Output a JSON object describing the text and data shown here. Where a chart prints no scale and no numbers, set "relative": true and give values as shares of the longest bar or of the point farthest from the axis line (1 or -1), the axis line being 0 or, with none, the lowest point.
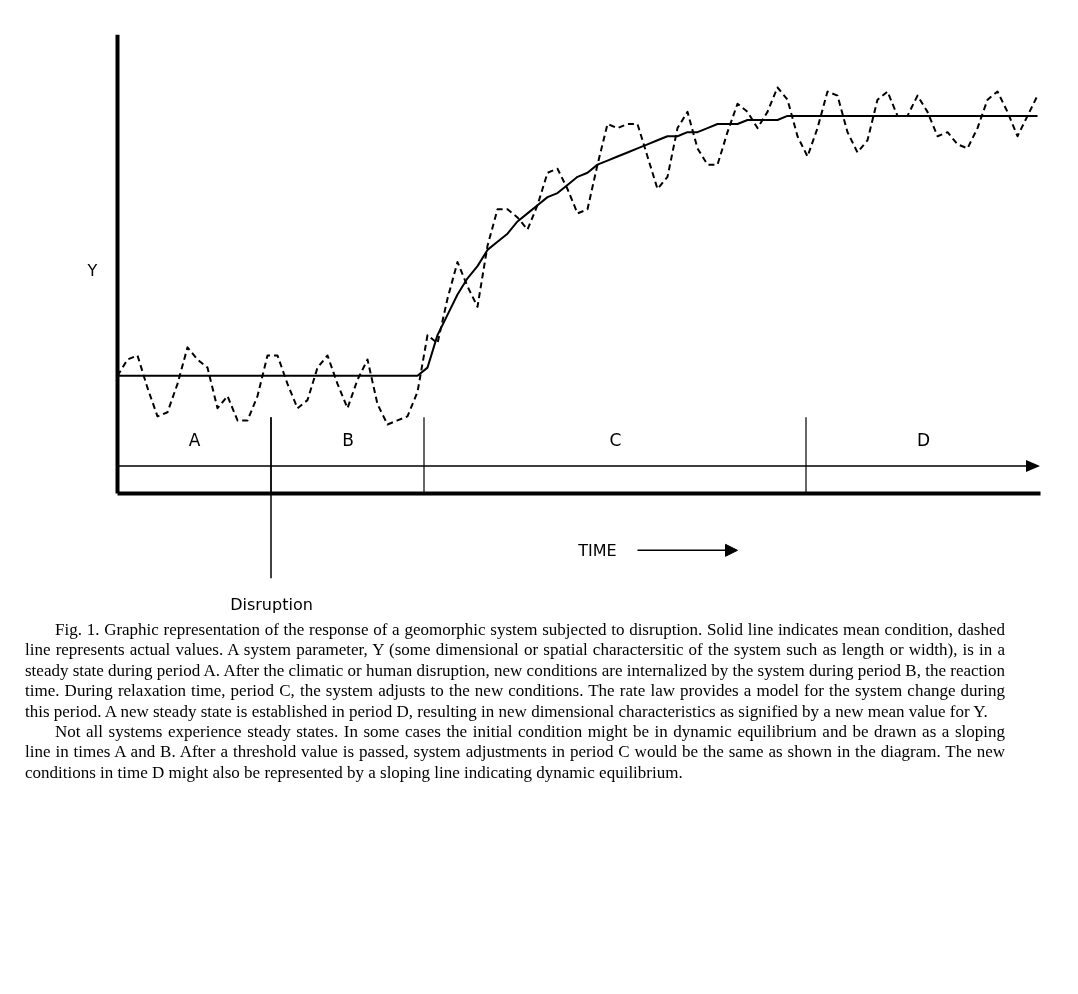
{
  "chart_data": {
    "type": "line",
    "relative": true,
    "xlabel": "TIME",
    "ylabel": "Y",
    "categories": [
      null,
      null,
      null,
      null,
      null,
      null,
      null,
      null,
      null,
      null,
      null,
      null,
      null,
      null,
      null,
      null,
      null,
      null,
      null,
      null,
      null,
      null,
      null,
      null,
      null,
      null,
      null,
      null,
      null,
      null,
      null,
      null,
      null,
      null,
      null,
      null,
      null,
      null,
      null,
      null,
      null,
      null,
      null,
      null,
      null,
      null,
      null,
      null,
      null,
      null,
      null,
      null,
      null,
      null,
      null,
      null,
      null,
      null,
      null,
      null,
      null,
      null,
      null,
      null,
      null,
      null,
      null,
      null,
      null,
      null,
      null,
      null,
      null,
      null,
      null,
      null,
      null,
      null,
      null,
      null,
      null,
      null,
      null,
      null,
      null,
      null,
      null,
      null,
      null,
      null,
      null,
      null,
      null
    ],
    "series": [
      {
        "color": "#000000",
        "line_style": "solid",
        "values": [
          0.29,
          0.29,
          0.29,
          0.29,
          0.29,
          0.29,
          0.29,
          0.29,
          0.29,
          0.29,
          0.29,
          0.29,
          0.29,
          0.29,
          0.29,
          0.29,
          0.29,
          0.29,
          0.29,
          0.29,
          0.29,
          0.29,
          0.29,
          0.29,
          0.29,
          0.29,
          0.29,
          0.29,
          0.29,
          0.29,
          0.29,
          0.31,
          0.39,
          0.44,
          0.49,
          0.53,
          0.56,
          0.6,
          0.62,
          0.64,
          0.67,
          0.69,
          0.71,
          0.73,
          0.74,
          0.76,
          0.78,
          0.79,
          0.81,
          0.82,
          0.83,
          0.84,
          0.85,
          0.86,
          0.87,
          0.88,
          0.88,
          0.89,
          0.89,
          0.9,
          0.91,
          0.91,
          0.91,
          0.92,
          0.92,
          0.92,
          0.92,
          0.93,
          0.93,
          0.93,
          0.93,
          0.93,
          0.93,
          0.93,
          0.93,
          0.93,
          0.93,
          0.93,
          0.93,
          0.93,
          0.93,
          0.93,
          0.93,
          0.93,
          0.93,
          0.93,
          0.93,
          0.93,
          0.93,
          0.93,
          0.93,
          0.93,
          0.93
        ]
      },
      {
        "color": "#000000",
        "line_style": "dashed",
        "values": [
          0.29,
          0.33,
          0.34,
          0.26,
          0.19,
          0.2,
          0.27,
          0.36,
          0.33,
          0.31,
          0.21,
          0.24,
          0.18,
          0.18,
          0.24,
          0.34,
          0.34,
          0.27,
          0.21,
          0.23,
          0.31,
          0.34,
          0.27,
          0.21,
          0.28,
          0.33,
          0.22,
          0.17,
          0.18,
          0.19,
          0.25,
          0.39,
          0.37,
          0.48,
          0.57,
          0.51,
          0.46,
          0.61,
          0.7,
          0.7,
          0.68,
          0.65,
          0.71,
          0.79,
          0.8,
          0.75,
          0.69,
          0.7,
          0.81,
          0.91,
          0.9,
          0.91,
          0.91,
          0.83,
          0.75,
          0.78,
          0.9,
          0.94,
          0.85,
          0.81,
          0.81,
          0.89,
          0.96,
          0.94,
          0.9,
          0.94,
          1.0,
          0.97,
          0.88,
          0.83,
          0.9,
          0.99,
          0.98,
          0.89,
          0.84,
          0.87,
          0.97,
          0.99,
          0.93,
          0.93,
          0.98,
          0.94,
          0.88,
          0.89,
          0.86,
          0.85,
          0.9,
          0.97,
          0.99,
          0.94,
          0.88,
          0.93,
          0.98
        ]
      }
    ],
    "annotations": [
      "A",
      "B",
      "C",
      "D",
      "Disruption",
      "Fig. 1. Graphic representation of the response of a geomorphic system subjected to disruption. Solid line indicates mean condition, dashed line represents actual values. A system parameter, Y (some dimensional or spatial charactersitic of the system such as length or width), is in a steady state during period A. After the climatic or human disruption, new conditions are internalized by the system during period B, the reaction time. During relaxation time, period C, the system adjusts to the new conditions. The rate law provides a model for the system change during this period. A new steady state is established in period D, resulting in new dimensional characteristics as signified by a new mean value for Y.",
      "Not all systems experience steady states. In some cases the initial condition might be in dynamic equilibrium and be drawn as a sloping line in times A and B. After a threshold value is passed, system adjustments in period C would be the same as shown in the diagram. The new conditions in time D might also be represented by a sloping line indicating dynamic equilibrium."
    ]
  }
}
